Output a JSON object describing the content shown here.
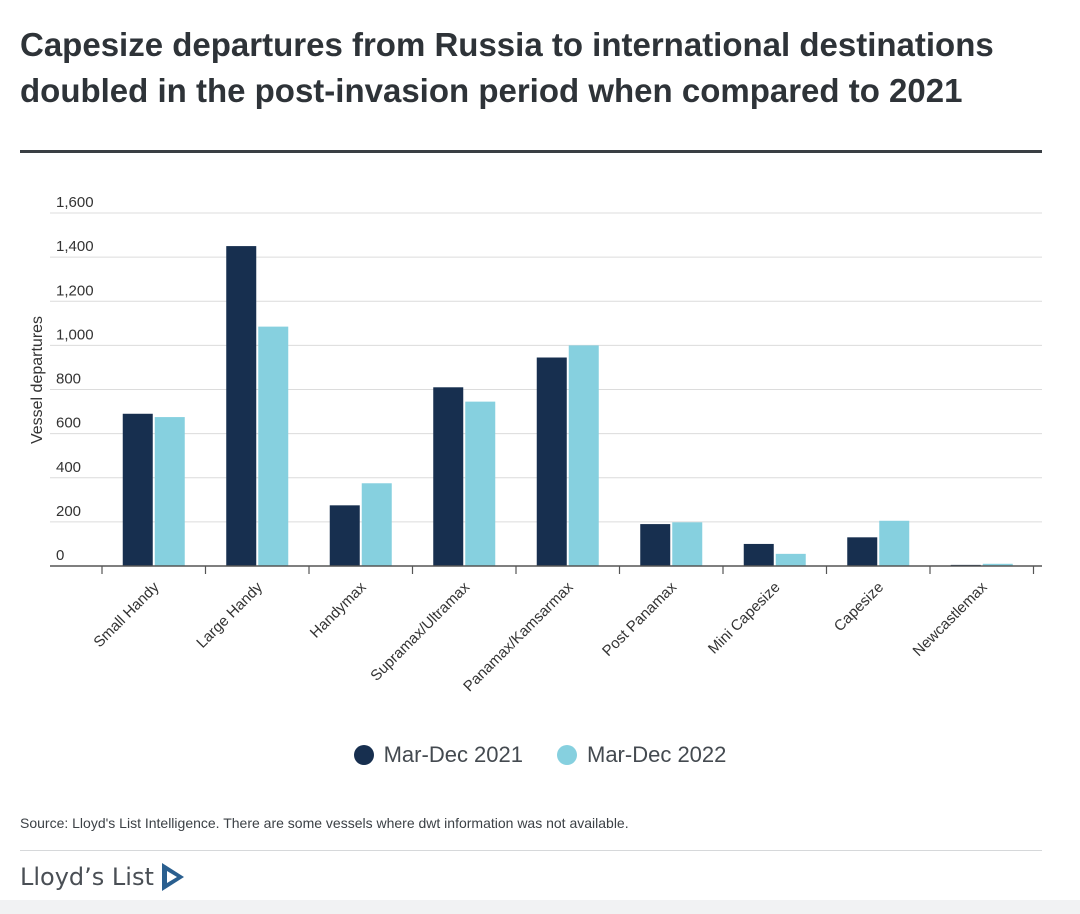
{
  "header": {
    "title": "Capesize departures from Russia to international destinations doubled in the post-invasion period when compared to 2021"
  },
  "chart_data": {
    "type": "bar",
    "ylabel": "Vessel departures",
    "xlabel": "",
    "ylim": [
      0,
      1600
    ],
    "yticks": [
      0,
      200,
      400,
      600,
      800,
      1000,
      1200,
      1400,
      1600
    ],
    "ytick_labels": [
      "0",
      "200",
      "400",
      "600",
      "800",
      "1,000",
      "1,200",
      "1,400",
      "1,600"
    ],
    "grid": true,
    "legend_position": "bottom",
    "categories": [
      "Small Handy",
      "Large Handy",
      "Handymax",
      "Supramax/Ultramax",
      "Panamax/Kamsarmax",
      "Post Panamax",
      "Mini Capesize",
      "Capesize",
      "Newcastlemax"
    ],
    "series": [
      {
        "name": "Mar-Dec 2021",
        "color": "#172f4f",
        "values": [
          690,
          1450,
          275,
          810,
          945,
          190,
          100,
          130,
          5
        ]
      },
      {
        "name": "Mar-Dec 2022",
        "color": "#86d0df",
        "values": [
          675,
          1085,
          375,
          745,
          1000,
          198,
          55,
          205,
          10
        ]
      }
    ]
  },
  "source": "Source: Lloyd's List Intelligence. There are some vessels where dwt information was not available.",
  "brand": {
    "name": "Lloyd’s List",
    "icon": "lloyds-list-logo-icon",
    "icon_color": "#2a5f8f"
  }
}
